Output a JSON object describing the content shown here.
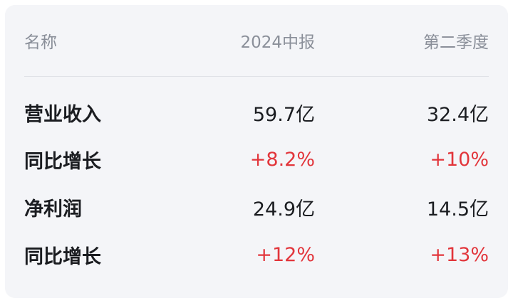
{
  "table": {
    "headers": {
      "name": "名称",
      "h1_2024": "2024中报",
      "q2": "第二季度"
    },
    "rows": [
      {
        "name": "营业收入",
        "h1_2024": "59.7亿",
        "q2": "32.4亿"
      },
      {
        "name": "同比增长",
        "h1_2024": "+8.2%",
        "q2": "+10%"
      },
      {
        "name": "净利润",
        "h1_2024": "24.9亿",
        "q2": "14.5亿"
      },
      {
        "name": "同比增长",
        "h1_2024": "+12%",
        "q2": "+13%"
      }
    ]
  },
  "colors": {
    "card_background": "#f4f5f8",
    "header_text": "#8a8f99",
    "body_text": "#1b1d21",
    "positive_change": "#e2353b",
    "divider": "#e0e2e7"
  }
}
